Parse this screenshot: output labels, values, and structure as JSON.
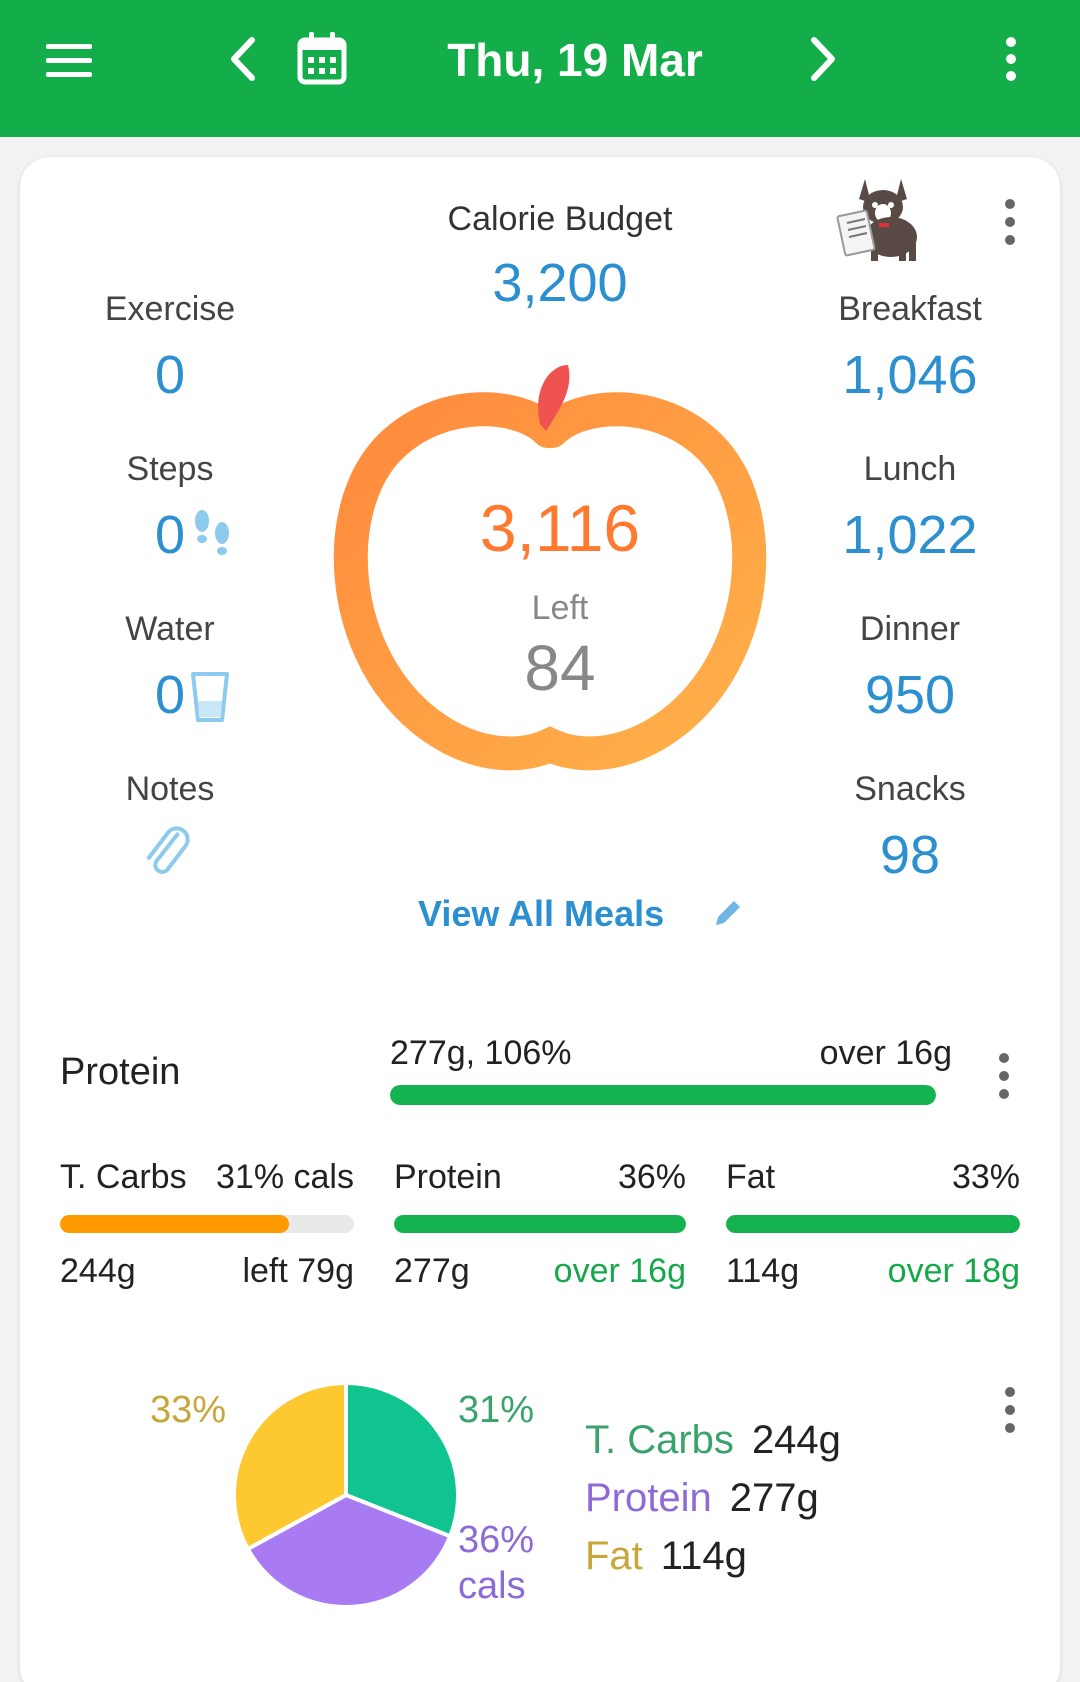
{
  "header": {
    "date": "Thu, 19 Mar",
    "icons": [
      "menu-icon",
      "chevron-left-icon",
      "calendar-icon",
      "chevron-right-icon",
      "more-vert-icon"
    ]
  },
  "summary": {
    "budget_label": "Calorie Budget",
    "budget_value": "3,200",
    "left_calories": "3,116",
    "left_label": "Left",
    "left_value": "84",
    "view_all_meals": "View All Meals",
    "left_column": [
      {
        "label": "Exercise",
        "value": "0"
      },
      {
        "label": "Steps",
        "value": "0"
      },
      {
        "label": "Water",
        "value": "0"
      },
      {
        "label": "Notes",
        "value": ""
      }
    ],
    "right_column": [
      {
        "label": "Breakfast",
        "value": "1,046"
      },
      {
        "label": "Lunch",
        "value": "1,022"
      },
      {
        "label": "Dinner",
        "value": "950"
      },
      {
        "label": "Snacks",
        "value": "98"
      }
    ]
  },
  "protein_goal": {
    "title": "Protein",
    "amount_pct": "277g, 106%",
    "status": "over 16g",
    "progress": 1.0
  },
  "macros": [
    {
      "name": "T. Carbs",
      "pct": "31% cals",
      "grams": "244g",
      "status": "left 79g",
      "progress": 0.78,
      "color": "#ff9a00",
      "over": false
    },
    {
      "name": "Protein",
      "pct": "36%",
      "grams": "277g",
      "status": "over 16g",
      "progress": 1.0,
      "color": "#15b350",
      "over": true
    },
    {
      "name": "Fat",
      "pct": "33%",
      "grams": "114g",
      "status": "over 18g",
      "progress": 1.0,
      "color": "#15b350",
      "over": true
    }
  ],
  "chart_data": {
    "type": "pie",
    "labels": [
      "T. Carbs",
      "Protein",
      "Fat"
    ],
    "values": [
      31,
      36,
      33
    ],
    "grams": [
      "244g",
      "277g",
      "114g"
    ],
    "colors": [
      "#0fc48e",
      "#a97bf2",
      "#fec831"
    ],
    "label_colors": [
      "#3aa36b",
      "#8e6ad6",
      "#c9a63a"
    ],
    "slice_labels": [
      "31%",
      "36%",
      "33%"
    ],
    "unit_label": "cals"
  }
}
